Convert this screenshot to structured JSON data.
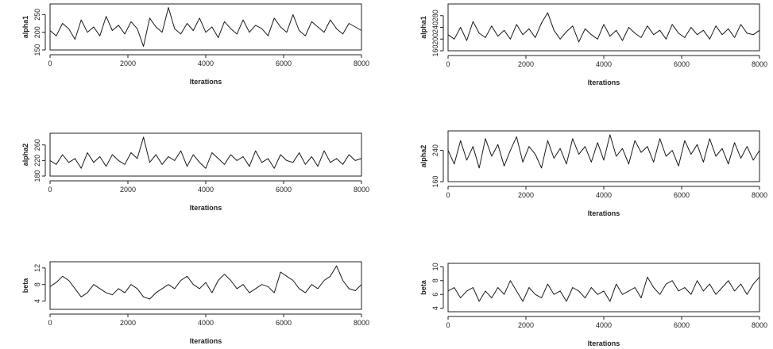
{
  "chart_data": [
    {
      "type": "line",
      "xlabel": "Iterations",
      "ylabel": "alpha1",
      "xlim": [
        0,
        8000
      ],
      "ylim": [
        150,
        280
      ],
      "xticks": [
        0,
        2000,
        4000,
        6000,
        8000
      ],
      "yticks": [
        150,
        200,
        250
      ],
      "series": [
        {
          "x": [
            0,
            160,
            320,
            480,
            640,
            800,
            960,
            1120,
            1280,
            1440,
            1600,
            1760,
            1920,
            2080,
            2240,
            2400,
            2560,
            2720,
            2880,
            3040,
            3200,
            3360,
            3520,
            3680,
            3840,
            4000,
            4160,
            4320,
            4480,
            4640,
            4800,
            4960,
            5120,
            5280,
            5440,
            5600,
            5760,
            5920,
            6080,
            6240,
            6400,
            6560,
            6720,
            6880,
            7040,
            7200,
            7360,
            7520,
            7680,
            7840,
            8000
          ],
          "y": [
            205,
            190,
            225,
            210,
            180,
            235,
            200,
            215,
            190,
            245,
            205,
            220,
            195,
            230,
            210,
            160,
            240,
            215,
            200,
            270,
            210,
            195,
            225,
            205,
            240,
            200,
            215,
            185,
            230,
            210,
            195,
            235,
            200,
            220,
            210,
            190,
            240,
            215,
            200,
            250,
            205,
            190,
            230,
            215,
            200,
            235,
            210,
            195,
            225,
            215,
            205
          ]
        }
      ]
    },
    {
      "type": "line",
      "xlabel": "Iterations",
      "ylabel": "alpha1",
      "xlim": [
        0,
        8000
      ],
      "ylim": [
        160,
        320
      ],
      "xticks": [
        0,
        2000,
        4000,
        6000,
        8000
      ],
      "yticks": [
        160,
        200,
        240,
        280
      ],
      "series": [
        {
          "x": [
            0,
            160,
            320,
            480,
            640,
            800,
            960,
            1120,
            1280,
            1440,
            1600,
            1760,
            1920,
            2080,
            2240,
            2400,
            2560,
            2720,
            2880,
            3040,
            3200,
            3360,
            3520,
            3680,
            3840,
            4000,
            4160,
            4320,
            4480,
            4640,
            4800,
            4960,
            5120,
            5280,
            5440,
            5600,
            5760,
            5920,
            6080,
            6240,
            6400,
            6560,
            6720,
            6880,
            7040,
            7200,
            7360,
            7520,
            7680,
            7840,
            8000
          ],
          "y": [
            215,
            200,
            240,
            195,
            260,
            220,
            205,
            245,
            210,
            230,
            200,
            250,
            215,
            235,
            205,
            255,
            290,
            230,
            200,
            225,
            245,
            190,
            235,
            215,
            200,
            250,
            210,
            230,
            195,
            240,
            220,
            205,
            245,
            215,
            230,
            200,
            250,
            220,
            205,
            240,
            215,
            230,
            200,
            245,
            215,
            235,
            205,
            250,
            220,
            215,
            230
          ]
        }
      ]
    },
    {
      "type": "line",
      "xlabel": "Iterations",
      "ylabel": "alpha2",
      "xlim": [
        0,
        8000
      ],
      "ylim": [
        180,
        290
      ],
      "xticks": [
        0,
        2000,
        4000,
        6000,
        8000
      ],
      "yticks": [
        180,
        220,
        260
      ],
      "series": [
        {
          "x": [
            0,
            160,
            320,
            480,
            640,
            800,
            960,
            1120,
            1280,
            1440,
            1600,
            1760,
            1920,
            2080,
            2240,
            2400,
            2560,
            2720,
            2880,
            3040,
            3200,
            3360,
            3520,
            3680,
            3840,
            4000,
            4160,
            4320,
            4480,
            4640,
            4800,
            4960,
            5120,
            5280,
            5440,
            5600,
            5760,
            5920,
            6080,
            6240,
            6400,
            6560,
            6720,
            6880,
            7040,
            7200,
            7360,
            7520,
            7680,
            7840,
            8000
          ],
          "y": [
            220,
            210,
            235,
            215,
            225,
            200,
            240,
            215,
            230,
            205,
            235,
            220,
            210,
            240,
            225,
            280,
            215,
            235,
            210,
            230,
            220,
            245,
            205,
            235,
            215,
            200,
            240,
            225,
            210,
            235,
            220,
            230,
            205,
            245,
            215,
            225,
            200,
            235,
            220,
            215,
            240,
            210,
            230,
            205,
            245,
            215,
            225,
            210,
            235,
            220,
            225
          ]
        }
      ]
    },
    {
      "type": "line",
      "xlabel": "Iterations",
      "ylabel": "alpha2",
      "xlim": [
        0,
        8000
      ],
      "ylim": [
        160,
        290
      ],
      "xticks": [
        0,
        2000,
        4000,
        6000,
        8000
      ],
      "yticks": [
        160,
        240
      ],
      "series": [
        {
          "x": [
            0,
            160,
            320,
            480,
            640,
            800,
            960,
            1120,
            1280,
            1440,
            1600,
            1760,
            1920,
            2080,
            2240,
            2400,
            2560,
            2720,
            2880,
            3040,
            3200,
            3360,
            3520,
            3680,
            3840,
            4000,
            4160,
            4320,
            4480,
            4640,
            4800,
            4960,
            5120,
            5280,
            5440,
            5600,
            5760,
            5920,
            6080,
            6240,
            6400,
            6560,
            6720,
            6880,
            7040,
            7200,
            7360,
            7520,
            7680,
            7840,
            8000
          ],
          "y": [
            240,
            205,
            265,
            215,
            250,
            195,
            270,
            225,
            255,
            200,
            240,
            275,
            210,
            250,
            230,
            195,
            265,
            220,
            245,
            205,
            270,
            230,
            250,
            210,
            260,
            215,
            280,
            225,
            245,
            205,
            265,
            235,
            250,
            210,
            270,
            225,
            240,
            200,
            265,
            230,
            255,
            210,
            270,
            225,
            245,
            205,
            260,
            220,
            250,
            215,
            240
          ]
        }
      ]
    },
    {
      "type": "line",
      "xlabel": "Iterations",
      "ylabel": "beta",
      "xlim": [
        0,
        8000
      ],
      "ylim": [
        2,
        13.5
      ],
      "xticks": [
        0,
        2000,
        4000,
        6000,
        8000
      ],
      "yticks": [
        4,
        8,
        12
      ],
      "series": [
        {
          "x": [
            0,
            160,
            320,
            480,
            640,
            800,
            960,
            1120,
            1280,
            1440,
            1600,
            1760,
            1920,
            2080,
            2240,
            2400,
            2560,
            2720,
            2880,
            3040,
            3200,
            3360,
            3520,
            3680,
            3840,
            4000,
            4160,
            4320,
            4480,
            4640,
            4800,
            4960,
            5120,
            5280,
            5440,
            5600,
            5760,
            5920,
            6080,
            6240,
            6400,
            6560,
            6720,
            6880,
            7040,
            7200,
            7360,
            7520,
            7680,
            7840,
            8000
          ],
          "y": [
            7.5,
            8.5,
            10,
            9,
            7,
            5,
            6,
            8,
            7,
            6,
            5.5,
            7,
            6,
            8,
            7,
            5,
            4.5,
            6,
            7,
            8,
            7,
            9,
            10,
            8,
            7,
            8.5,
            6,
            9,
            10.5,
            9,
            7,
            8,
            6,
            7,
            8,
            7.5,
            6,
            11,
            10,
            9,
            7,
            6,
            8,
            7,
            9,
            10,
            12.5,
            9,
            7,
            6.5,
            8
          ]
        }
      ]
    },
    {
      "type": "line",
      "xlabel": "Iterations",
      "ylabel": "beta",
      "xlim": [
        0,
        8000
      ],
      "ylim": [
        3.5,
        10.5
      ],
      "xticks": [
        0,
        2000,
        4000,
        6000,
        8000
      ],
      "yticks": [
        4,
        6,
        8,
        10
      ],
      "series": [
        {
          "x": [
            0,
            160,
            320,
            480,
            640,
            800,
            960,
            1120,
            1280,
            1440,
            1600,
            1760,
            1920,
            2080,
            2240,
            2400,
            2560,
            2720,
            2880,
            3040,
            3200,
            3360,
            3520,
            3680,
            3840,
            4000,
            4160,
            4320,
            4480,
            4640,
            4800,
            4960,
            5120,
            5280,
            5440,
            5600,
            5760,
            5920,
            6080,
            6240,
            6400,
            6560,
            6720,
            6880,
            7040,
            7200,
            7360,
            7520,
            7680,
            7840,
            8000
          ],
          "y": [
            6.5,
            7,
            5.5,
            6.5,
            7,
            5,
            6.5,
            5.5,
            7,
            6,
            8,
            6.5,
            5,
            7,
            6,
            5.5,
            7.5,
            6,
            6.5,
            5,
            7,
            6.5,
            5.5,
            7,
            6,
            6.5,
            5,
            7.5,
            6,
            6.5,
            7,
            5.5,
            8.5,
            7,
            6,
            7.5,
            8,
            6.5,
            7,
            6,
            8,
            6.5,
            7.5,
            6,
            7,
            8,
            6.5,
            7.5,
            6,
            7.5,
            8.5
          ]
        }
      ]
    }
  ]
}
